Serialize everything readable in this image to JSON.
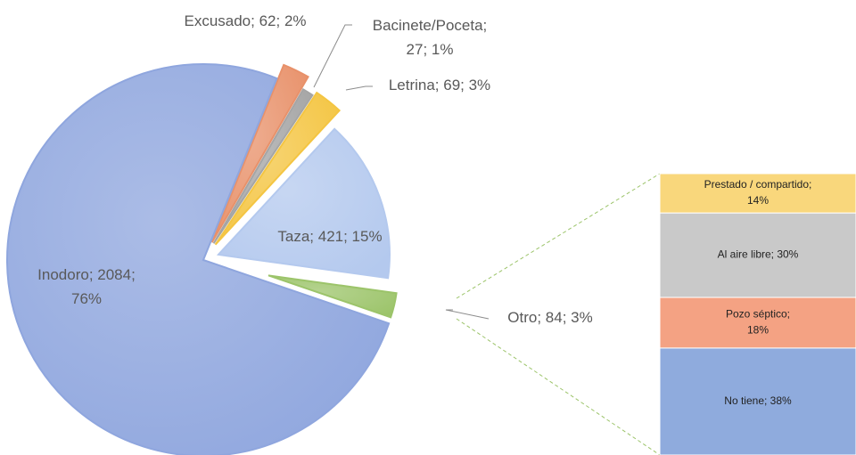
{
  "chart_data": [
    {
      "type": "pie",
      "categories": [
        "Excusado",
        "Bacinete/Poceta",
        "Letrina",
        "Taza",
        "Otro",
        "Inodoro"
      ],
      "values": [
        62,
        27,
        69,
        421,
        84,
        2084
      ],
      "value_labels": [
        "Excusado; 62; 2%",
        "Bacinete/Poceta; 27; 1%",
        "Letrina; 69; 3%",
        "Taza; 421; 15%",
        "Otro; 84; 3%",
        "Inodoro; 2084; 76%"
      ],
      "colors": [
        "#e8916a",
        "#a5a5a5",
        "#f4c542",
        "#b4c9ee",
        "#9cc46a",
        "#8fa6de"
      ]
    },
    {
      "type": "stacked_bar",
      "categories": [
        "Prestado / compartido",
        "Al aire libre",
        "Pozo séptico",
        "No tiene"
      ],
      "values": [
        14,
        30,
        18,
        38
      ],
      "value_labels": [
        "Prestado / compartido; 14%",
        "Al aire libre; 30%",
        "Pozo séptico; 18%",
        "No tiene; 38%"
      ],
      "colors": [
        "#f9d77c",
        "#c9c9c9",
        "#f4a283",
        "#8fabdd"
      ]
    }
  ]
}
